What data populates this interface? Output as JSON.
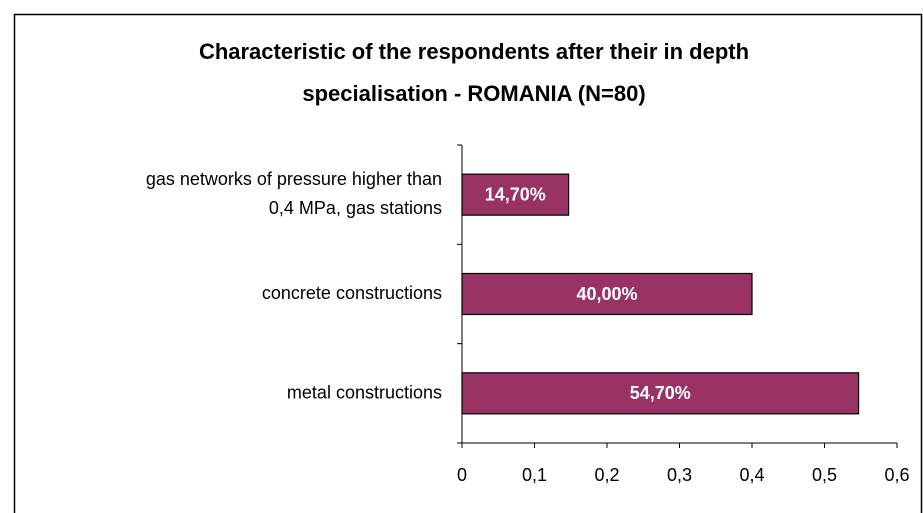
{
  "chart_data": {
    "type": "barh",
    "title": "Characteristic of the respondents after their in depth specialisation - ROMANIA (N=80)",
    "categories": [
      "gas networks of pressure higher than 0,4 MPa, gas stations",
      "concrete constructions",
      "metal constructions"
    ],
    "values": [
      0.147,
      0.4,
      0.547
    ],
    "value_labels": [
      "14,70%",
      "40,00%",
      "54,70%"
    ],
    "color": "#993366",
    "xlim": [
      0,
      0.6
    ],
    "xticks": [
      0,
      {
        "value": 0.1,
        "label": "0,1"
      },
      {
        "value": 0.2,
        "label": "0,2"
      },
      {
        "value": 0.3,
        "label": "0,3"
      },
      {
        "value": 0.4,
        "label": "0,4"
      },
      {
        "value": 0.5,
        "label": "0,5"
      },
      {
        "value": 0.6,
        "label": "0,6"
      }
    ],
    "grid": false
  }
}
